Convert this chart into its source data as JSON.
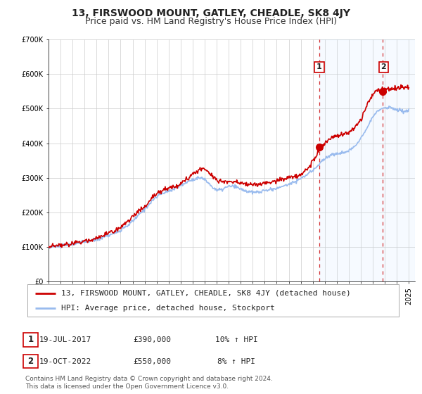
{
  "title": "13, FIRSWOOD MOUNT, GATLEY, CHEADLE, SK8 4JY",
  "subtitle": "Price paid vs. HM Land Registry's House Price Index (HPI)",
  "xlim": [
    1995,
    2025.5
  ],
  "ylim": [
    0,
    700000
  ],
  "yticks": [
    0,
    100000,
    200000,
    300000,
    400000,
    500000,
    600000,
    700000
  ],
  "ytick_labels": [
    "£0",
    "£100K",
    "£200K",
    "£300K",
    "£400K",
    "£500K",
    "£600K",
    "£700K"
  ],
  "line1_color": "#cc0000",
  "line2_color": "#99bbee",
  "marker_color": "#cc0000",
  "sale1_x": 2017.54,
  "sale1_y": 390000,
  "sale2_x": 2022.8,
  "sale2_y": 550000,
  "vline1_x": 2017.54,
  "vline2_x": 2022.8,
  "legend1_label": "13, FIRSWOOD MOUNT, GATLEY, CHEADLE, SK8 4JY (detached house)",
  "legend2_label": "HPI: Average price, detached house, Stockport",
  "annotation1_label": "1",
  "annotation2_label": "2",
  "sale1_date": "19-JUL-2017",
  "sale1_price": "£390,000",
  "sale1_hpi": "10% ↑ HPI",
  "sale2_date": "19-OCT-2022",
  "sale2_price": "£550,000",
  "sale2_hpi": "8% ↑ HPI",
  "footer1": "Contains HM Land Registry data © Crown copyright and database right 2024.",
  "footer2": "This data is licensed under the Open Government Licence v3.0.",
  "bg_color": "#ffffff",
  "grid_color": "#cccccc",
  "title_fontsize": 10,
  "subtitle_fontsize": 9,
  "tick_fontsize": 7,
  "legend_fontsize": 8,
  "annot_fontsize": 8,
  "footer_fontsize": 6.5
}
